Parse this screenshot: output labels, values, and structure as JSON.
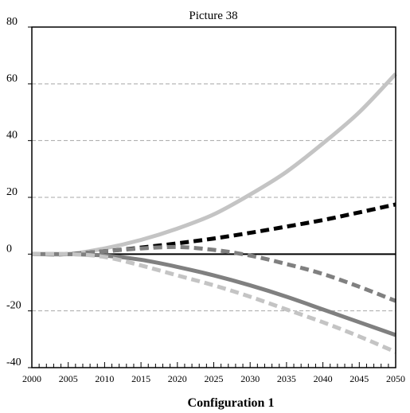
{
  "chart_data": {
    "type": "line",
    "title": "Picture 38",
    "xlabel": "Configuration 1",
    "ylabel": "",
    "xlim": [
      2000,
      2050
    ],
    "ylim": [
      -40,
      80
    ],
    "x_ticks": [
      "2000",
      "2005",
      "2010",
      "2015",
      "2020",
      "2025",
      "2030",
      "2035",
      "2040",
      "2045",
      "2050"
    ],
    "y_ticks": [
      "80",
      "60",
      "40",
      "20",
      "0",
      "-20",
      "-40"
    ],
    "grid": "horizontal dashed",
    "x": [
      2000,
      2005,
      2010,
      2015,
      2020,
      2025,
      2030,
      2035,
      2040,
      2045,
      2050
    ],
    "series": [
      {
        "color": "#c4c4c4",
        "dash": "solid",
        "values": [
          0,
          0,
          2,
          5,
          9,
          14,
          21,
          29,
          39,
          50,
          63.5
        ]
      },
      {
        "color": "#000000",
        "dash": "dashed",
        "values": [
          0,
          0,
          1,
          2.3,
          3.8,
          5.5,
          7.5,
          9.7,
          12,
          14.7,
          17.5
        ]
      },
      {
        "color": "#808080",
        "dash": "dashed",
        "values": [
          0,
          0,
          1,
          2,
          2.5,
          1.5,
          -0.5,
          -3.5,
          -7,
          -11.5,
          -16.5
        ]
      },
      {
        "color": "#808080",
        "dash": "solid",
        "values": [
          0,
          0,
          -0.5,
          -2,
          -4.5,
          -7.5,
          -11,
          -15,
          -19.5,
          -24,
          -28.5
        ]
      },
      {
        "color": "#c4c4c4",
        "dash": "dashed",
        "values": [
          0,
          0,
          -1,
          -4,
          -7.5,
          -11,
          -15,
          -19.5,
          -24,
          -29,
          -34.5
        ]
      }
    ]
  }
}
